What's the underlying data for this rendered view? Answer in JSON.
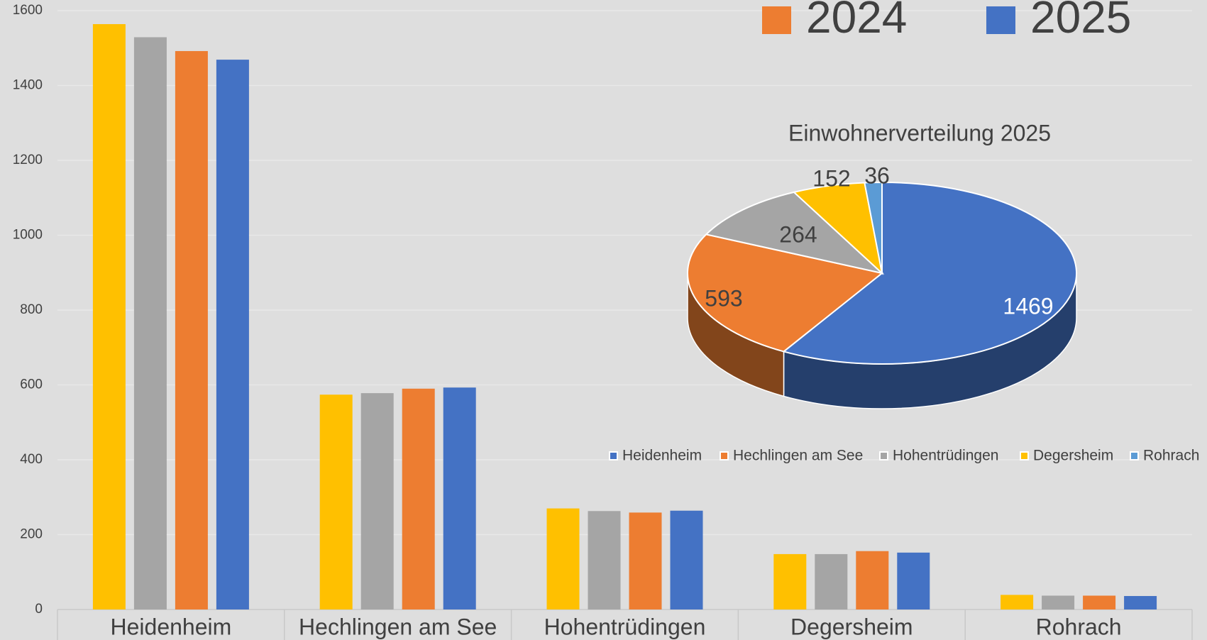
{
  "chart_data": [
    {
      "type": "bar",
      "categories": [
        "Heidenheim",
        "Hechlingen am See",
        "Hohentrüdingen",
        "Degersheim",
        "Rohrach"
      ],
      "series": [
        {
          "color": "#ffc000",
          "values": [
            1564,
            574,
            270,
            148,
            39
          ]
        },
        {
          "color": "#a5a5a5",
          "values": [
            1529,
            578,
            263,
            148,
            37
          ]
        },
        {
          "name": "2024",
          "color": "#ed7d31",
          "values": [
            1492,
            590,
            259,
            156,
            37
          ]
        },
        {
          "name": "2025",
          "color": "#4472c4",
          "values": [
            1469,
            593,
            264,
            152,
            36
          ]
        }
      ],
      "ylim": [
        0,
        1600
      ],
      "yticks": [
        0,
        200,
        400,
        600,
        800,
        1000,
        1200,
        1400,
        1600
      ],
      "grid": true
    },
    {
      "type": "pie",
      "title": "Einwohnerverteilung 2025",
      "categories": [
        "Heidenheim",
        "Hechlingen am See",
        "Hohentrüdingen",
        "Degersheim",
        "Rohrach"
      ],
      "values": [
        1469,
        593,
        264,
        152,
        36
      ],
      "colors": [
        "#4472c4",
        "#ed7d31",
        "#a5a5a5",
        "#ffc000",
        "#5b9bd5"
      ]
    }
  ]
}
